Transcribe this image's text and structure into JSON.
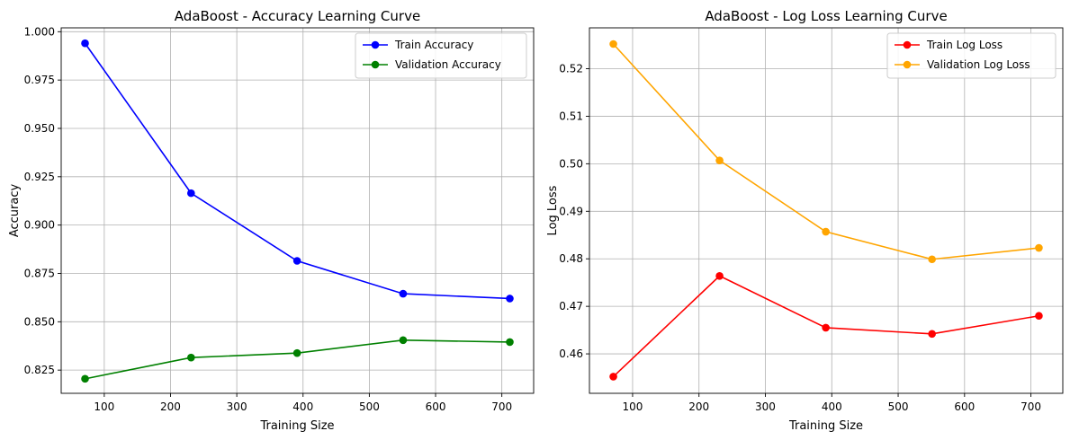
{
  "chart_data": [
    {
      "type": "line",
      "title": "AdaBoost - Accuracy Learning Curve",
      "xlabel": "Training Size",
      "ylabel": "Accuracy",
      "x": [
        71,
        231,
        391,
        551,
        712
      ],
      "xlim": [
        35,
        748
      ],
      "ylim": [
        0.813,
        1.002
      ],
      "xticks": [
        100,
        200,
        300,
        400,
        500,
        600,
        700
      ],
      "yticks": [
        0.825,
        0.85,
        0.875,
        0.9,
        0.925,
        0.95,
        0.975,
        1.0
      ],
      "ytick_decimals": 3,
      "grid": true,
      "legend_position": "top-right",
      "series": [
        {
          "name": "Train Accuracy",
          "color": "#0000ff",
          "values": [
            0.994,
            0.9165,
            0.8815,
            0.8645,
            0.862
          ]
        },
        {
          "name": "Validation Accuracy",
          "color": "#008000",
          "values": [
            0.8205,
            0.8315,
            0.8338,
            0.8405,
            0.8395
          ]
        }
      ]
    },
    {
      "type": "line",
      "title": "AdaBoost - Log Loss Learning Curve",
      "xlabel": "Training Size",
      "ylabel": "Log Loss",
      "x": [
        71,
        231,
        391,
        551,
        712
      ],
      "xlim": [
        35,
        748
      ],
      "ylim": [
        0.4517,
        0.5286
      ],
      "xticks": [
        100,
        200,
        300,
        400,
        500,
        600,
        700
      ],
      "yticks": [
        0.46,
        0.47,
        0.48,
        0.49,
        0.5,
        0.51,
        0.52
      ],
      "ytick_decimals": 2,
      "grid": true,
      "legend_position": "top-right",
      "series": [
        {
          "name": "Train Log Loss",
          "color": "#ff0000",
          "values": [
            0.4552,
            0.4764,
            0.4655,
            0.4642,
            0.468
          ]
        },
        {
          "name": "Validation Log Loss",
          "color": "#ffa500",
          "values": [
            0.5252,
            0.5007,
            0.4857,
            0.4799,
            0.4823
          ]
        }
      ]
    }
  ]
}
